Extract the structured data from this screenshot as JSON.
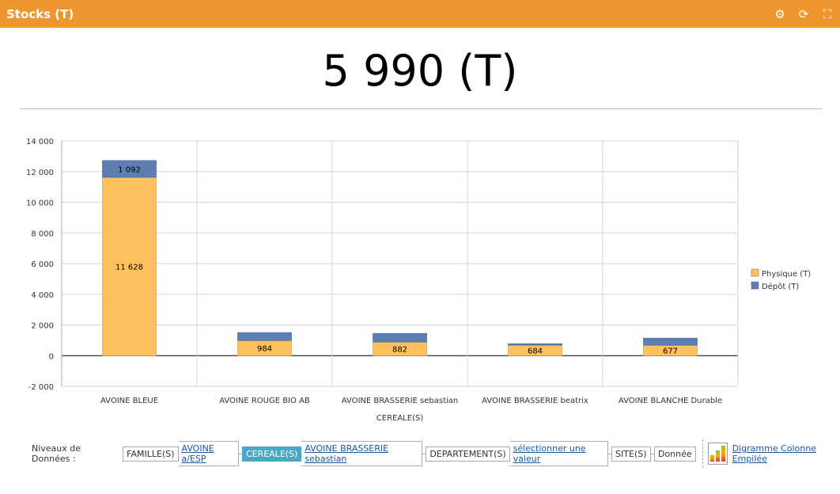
{
  "header": {
    "title": "Stocks (T)",
    "icons": [
      "settings-icon",
      "refresh-icon",
      "fullscreen-icon"
    ]
  },
  "kpi": "5 990 (T)",
  "chart_data": {
    "type": "bar",
    "stacked": true,
    "categories": [
      "AVOINE BLEUE",
      "AVOINE ROUGE BIO AB",
      "AVOINE BRASSERIE sebastian",
      "AVOINE BRASSERIE beatrix",
      "AVOINE BLANCHE Durable"
    ],
    "series": [
      {
        "name": "Physique (T)",
        "color": "#ffc15e",
        "values": [
          11628,
          984,
          882,
          684,
          677
        ],
        "labels": [
          "11 628",
          "984",
          "882",
          "684",
          "677"
        ]
      },
      {
        "name": "Dépôt (T)",
        "color": "#5b7fb3",
        "values": [
          1092,
          520,
          570,
          95,
          465
        ],
        "labels": [
          "1 092",
          "",
          "",
          "",
          ""
        ]
      }
    ],
    "xlabel": "CEREALE(S)",
    "ylabel": "",
    "ylim": [
      -2000,
      14000
    ],
    "yticks": [
      -2000,
      0,
      2000,
      4000,
      6000,
      8000,
      10000,
      12000,
      14000
    ],
    "ytick_labels": [
      "-2 000",
      "0",
      "2 000",
      "4 000",
      "6 000",
      "8 000",
      "10 000",
      "12 000",
      "14 000"
    ],
    "grid": true,
    "legend": "right"
  },
  "levels": {
    "label": "Niveaux de Données :",
    "items": [
      {
        "name": "FAMILLE(S)",
        "value": "AVOINE a/ESP"
      },
      {
        "name": "CEREALE(S)",
        "value": "AVOINE BRASSERIE sebastian",
        "selected": true
      },
      {
        "name": "DEPARTEMENT(S)",
        "value": "sélectionner une valeur"
      },
      {
        "name": "SITE(S)"
      },
      {
        "name": "Donnée"
      }
    ],
    "chart_type": "Digramme Colonne Empilée"
  }
}
